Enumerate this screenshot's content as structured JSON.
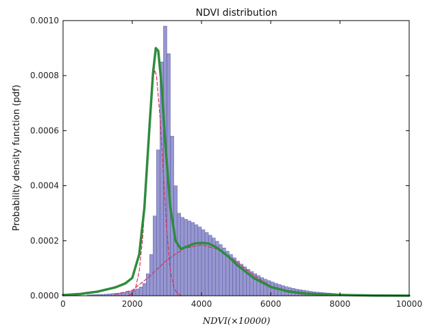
{
  "chart_data": {
    "type": "bar",
    "title": "NDVI distribution",
    "xlabel": "NDVI(×10000)",
    "ylabel": "Probability density function (pdf)",
    "xlim": [
      0,
      10000
    ],
    "ylim": [
      0,
      0.001
    ],
    "x_ticks": [
      0,
      2000,
      4000,
      6000,
      8000,
      10000
    ],
    "x_tick_labels": [
      "0",
      "2000",
      "4000",
      "6000",
      "8000",
      "10000"
    ],
    "y_ticks": [
      0,
      0.0002,
      0.0004,
      0.0006,
      0.0008,
      0.001
    ],
    "y_tick_labels": [
      "0.0000",
      "0.0002",
      "0.0004",
      "0.0006",
      "0.0008",
      "0.0010"
    ],
    "grid": false,
    "colors": {
      "histogram": "#8585c8",
      "histogram_edge": "#4a4a9a",
      "mixture": "#2e8b3e",
      "components": "#d1325b"
    },
    "histogram": {
      "bin_width": 100,
      "bin_start": 700,
      "values": [
        3e-06,
        4e-06,
        4e-06,
        5e-06,
        5e-06,
        6e-06,
        7e-06,
        8e-06,
        9e-06,
        1e-05,
        1.2e-05,
        1.4e-05,
        1.6e-05,
        2e-05,
        2.5e-05,
        3.2e-05,
        4.5e-05,
        8e-05,
        0.00015,
        0.00029,
        0.00053,
        0.00085,
        0.00098,
        0.00088,
        0.00058,
        0.0004,
        0.0003,
        0.000285,
        0.000278,
        0.000272,
        0.000266,
        0.000258,
        0.00025,
        0.00024,
        0.00023,
        0.00022,
        0.00021,
        0.000198,
        0.000186,
        0.000174,
        0.000162,
        0.00015,
        0.000138,
        0.000126,
        0.000115,
        0.000105,
        9.6e-05,
        8.8e-05,
        8e-05,
        7.3e-05,
        6.6e-05,
        6e-05,
        5.5e-05,
        5e-05,
        4.5e-05,
        4.1e-05,
        3.7e-05,
        3.3e-05,
        3e-05,
        2.7e-05,
        2.4e-05,
        2.2e-05,
        2e-05,
        1.8e-05,
        1.6e-05,
        1.4e-05,
        1.3e-05,
        1.2e-05,
        1.1e-05,
        1e-05,
        9e-06,
        8e-06,
        7e-06,
        6e-06,
        5e-06
      ]
    },
    "mixture_curve": {
      "x": [
        0,
        500,
        1000,
        1500,
        1800,
        2000,
        2200,
        2350,
        2500,
        2600,
        2680,
        2750,
        2850,
        2950,
        3100,
        3250,
        3400,
        3600,
        3800,
        4000,
        4200,
        4400,
        4600,
        4800,
        5000,
        5500,
        6000,
        6500,
        7000,
        7500,
        8000,
        9000,
        10000
      ],
      "y": [
        2.5e-06,
        6.5e-06,
        1.5e-05,
        3e-05,
        4.5e-05,
        6.5e-05,
        0.00015,
        0.00032,
        0.00062,
        0.00081,
        0.0009,
        0.00089,
        0.00076,
        0.00056,
        0.00032,
        0.0002,
        0.00017,
        0.00018,
        0.00019,
        0.000192,
        0.00019,
        0.000178,
        0.00016,
        0.00014,
        0.000115,
        6.5e-05,
        3.2e-05,
        1.6e-05,
        8e-06,
        5e-06,
        3e-06,
        1e-06,
        3e-07
      ]
    },
    "component_peak": {
      "x": [
        1900,
        2000,
        2100,
        2200,
        2300,
        2400,
        2500,
        2600,
        2650,
        2700,
        2800,
        2900,
        3000,
        3100,
        3200,
        3300,
        3400
      ],
      "y": [
        2e-06,
        8e-06,
        3e-05,
        9e-05,
        0.00021,
        0.0004,
        0.00062,
        0.00079,
        0.00082,
        0.0008,
        0.00065,
        0.00044,
        0.00023,
        9e-05,
        3e-05,
        8e-06,
        2e-06
      ]
    },
    "component_broad": {
      "x": [
        1500,
        2000,
        2500,
        3000,
        3500,
        4000,
        4500,
        5000,
        5500,
        6000,
        6500,
        7000
      ],
      "y": [
        5e-06,
        2e-05,
        7e-05,
        0.00013,
        0.000172,
        0.000185,
        0.000168,
        0.000125,
        7.5e-05,
        3.5e-05,
        1.3e-05,
        4e-06
      ]
    }
  }
}
